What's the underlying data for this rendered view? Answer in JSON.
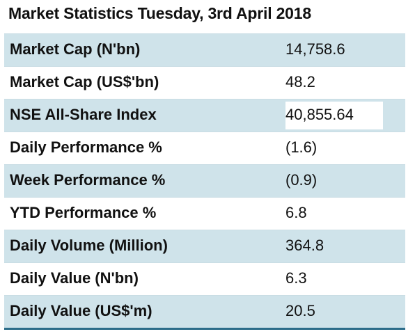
{
  "title": "Market Statistics Tuesday, 3rd April 2018",
  "rows": [
    {
      "label": "Market Cap (N'bn)",
      "value": "14,758.6"
    },
    {
      "label": "Market Cap (US$'bn)",
      "value": "48.2"
    },
    {
      "label": "NSE All-Share Index",
      "value": "40,855.64"
    },
    {
      "label": "Daily Performance %",
      "value": "(1.6)"
    },
    {
      "label": "Week Performance %",
      "value": "(0.9)"
    },
    {
      "label": "YTD Performance %",
      "value": "6.8"
    },
    {
      "label": "Daily Volume (Million)",
      "value": "364.8"
    },
    {
      "label": "Daily Value (N'bn)",
      "value": "6.3"
    },
    {
      "label": "Daily Value (US$'m)",
      "value": "20.5"
    }
  ],
  "colors": {
    "shaded_row": "#cfe3ea",
    "rule": "#2c6d8a"
  }
}
